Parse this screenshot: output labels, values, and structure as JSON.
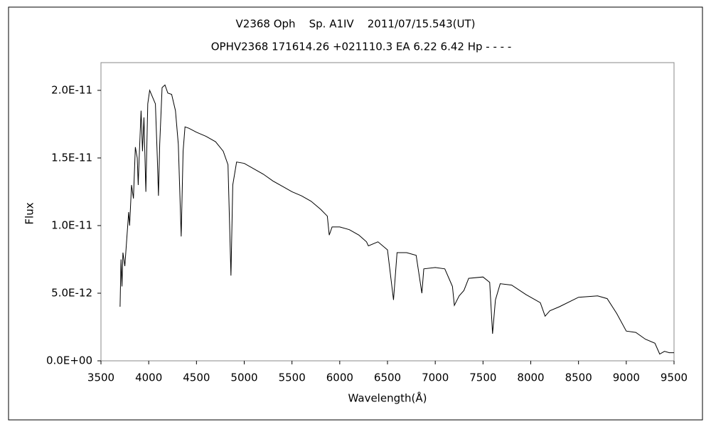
{
  "chart_data": {
    "type": "line",
    "title": "V2368 Oph    Sp. A1IV    2011/07/15.543(UT)",
    "subtitle": "OPHV2368 171614.26 +021110.3 EA 6.22 6.42 Hp - - - -",
    "x_label": "Wavelength(Å)",
    "y_label": "Flux",
    "color": "#000000",
    "grid": false,
    "xlim": [
      3500,
      9500
    ],
    "xticks": [
      3500,
      4000,
      4500,
      5000,
      5500,
      6000,
      6500,
      7000,
      7500,
      8000,
      8500,
      9000,
      9500
    ],
    "ylim": [
      0,
      2.205e-11
    ],
    "yticks": [
      {
        "value": 0,
        "label": "0.0E+00"
      },
      {
        "value": 5e-12,
        "label": "5.0E-12"
      },
      {
        "value": 1e-11,
        "label": "1.0E-11"
      },
      {
        "value": 1.5e-11,
        "label": "1.5E-11"
      },
      {
        "value": 2e-11,
        "label": "2.0E-11"
      }
    ],
    "x": [
      3700,
      3710,
      3720,
      3730,
      3750,
      3770,
      3790,
      3800,
      3820,
      3840,
      3860,
      3880,
      3890,
      3900,
      3920,
      3935,
      3950,
      3970,
      3990,
      4010,
      4040,
      4070,
      4090,
      4102,
      4115,
      4140,
      4170,
      4200,
      4240,
      4280,
      4310,
      4340,
      4360,
      4380,
      4420,
      4500,
      4600,
      4700,
      4780,
      4830,
      4861,
      4880,
      4920,
      5000,
      5100,
      5200,
      5300,
      5400,
      5500,
      5600,
      5700,
      5800,
      5870,
      5890,
      5920,
      6000,
      6100,
      6200,
      6280,
      6300,
      6400,
      6500,
      6563,
      6600,
      6700,
      6800,
      6860,
      6880,
      7000,
      7100,
      7180,
      7200,
      7250,
      7300,
      7350,
      7500,
      7570,
      7600,
      7630,
      7680,
      7800,
      7950,
      8100,
      8150,
      8200,
      8300,
      8500,
      8700,
      8800,
      8900,
      9000,
      9100,
      9200,
      9300,
      9350,
      9400,
      9450,
      9500
    ],
    "values": [
      4e-12,
      7.5e-12,
      5.5e-12,
      8e-12,
      7e-12,
      9e-12,
      1.1e-11,
      1e-11,
      1.3e-11,
      1.2e-11,
      1.58e-11,
      1.5e-11,
      1.3e-11,
      1.5e-11,
      1.85e-11,
      1.55e-11,
      1.8e-11,
      1.25e-11,
      1.9e-11,
      2e-11,
      1.95e-11,
      1.9e-11,
      1.5e-11,
      1.22e-11,
      1.6e-11,
      2.02e-11,
      2.04e-11,
      1.98e-11,
      1.97e-11,
      1.85e-11,
      1.6e-11,
      9.2e-12,
      1.55e-11,
      1.73e-11,
      1.72e-11,
      1.69e-11,
      1.66e-11,
      1.62e-11,
      1.55e-11,
      1.45e-11,
      6.3e-12,
      1.3e-11,
      1.47e-11,
      1.46e-11,
      1.42e-11,
      1.38e-11,
      1.33e-11,
      1.29e-11,
      1.25e-11,
      1.22e-11,
      1.18e-11,
      1.12e-11,
      1.07e-11,
      9.3e-12,
      9.9e-12,
      9.9e-12,
      9.7e-12,
      9.3e-12,
      8.8e-12,
      8.5e-12,
      8.8e-12,
      8.2e-12,
      4.5e-12,
      8e-12,
      8e-12,
      7.8e-12,
      5e-12,
      6.8e-12,
      6.9e-12,
      6.8e-12,
      5.5e-12,
      4.1e-12,
      4.8e-12,
      5.2e-12,
      6.1e-12,
      6.2e-12,
      5.8e-12,
      2e-12,
      4.5e-12,
      5.7e-12,
      5.6e-12,
      4.9e-12,
      4.3e-12,
      3.3e-12,
      3.7e-12,
      4e-12,
      4.7e-12,
      4.8e-12,
      4.6e-12,
      3.5e-12,
      2.2e-12,
      2.1e-12,
      1.6e-12,
      1.3e-12,
      5e-13,
      7e-13,
      6e-13,
      6e-13
    ]
  }
}
